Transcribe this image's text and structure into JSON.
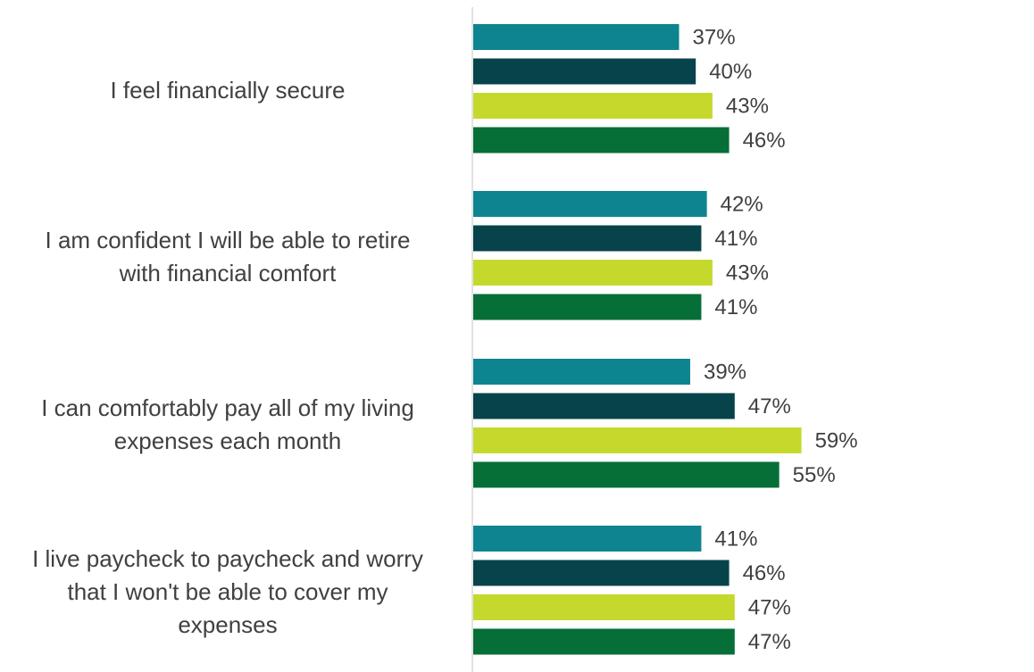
{
  "chart_data": {
    "type": "bar",
    "orientation": "horizontal",
    "categories": [
      "I feel financially secure",
      "I am confident I will be able to retire with financial comfort",
      "I can comfortably pay all of my living expenses each month",
      "I live paycheck to paycheck and worry that I won't be able to cover my expenses"
    ],
    "category_lines": [
      [
        "I feel financially secure"
      ],
      [
        "I am confident I will be able to retire",
        "with financial comfort"
      ],
      [
        "I can comfortably pay all of my living",
        "expenses each month"
      ],
      [
        "I live paycheck to paycheck and worry",
        "that I won't be able to cover my",
        "expenses"
      ]
    ],
    "series": [
      {
        "color": "#0E8490",
        "values": [
          37,
          42,
          39,
          41
        ]
      },
      {
        "color": "#07434B",
        "values": [
          40,
          41,
          47,
          46
        ]
      },
      {
        "color": "#C5D92D",
        "values": [
          43,
          43,
          59,
          47
        ]
      },
      {
        "color": "#066E37",
        "values": [
          46,
          41,
          55,
          47
        ]
      }
    ],
    "value_suffix": "%",
    "xlim": [
      0,
      100
    ],
    "grid": false,
    "legend": "none",
    "axis_color": "#D9D9D9"
  }
}
